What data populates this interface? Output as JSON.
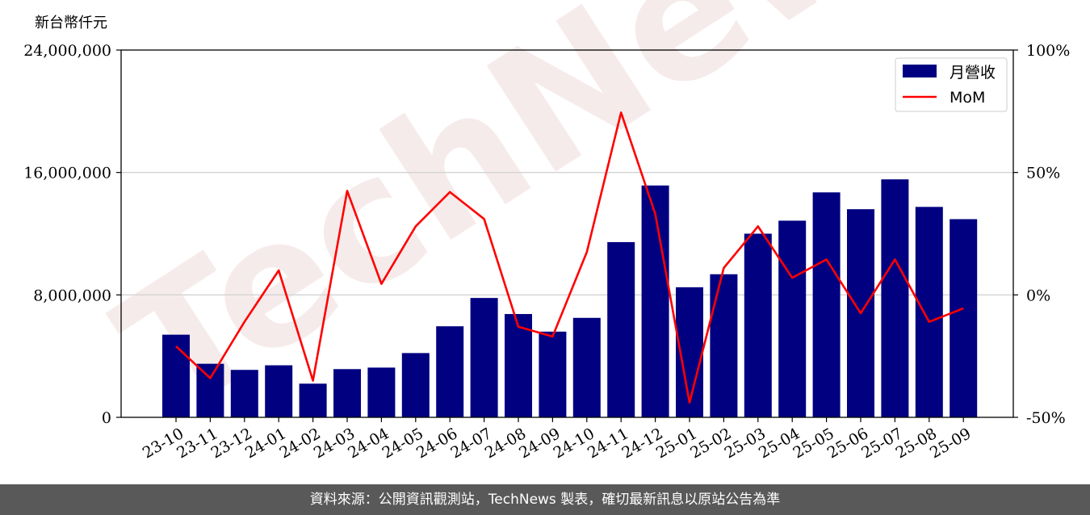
{
  "unit_label": "新台幣仟元",
  "footer": "資料來源：公開資訊觀測站，TechNews 製表，確切最新訊息以原站公告為準",
  "watermark": "TechNews",
  "colors": {
    "bar": "#000080",
    "line": "#ff0000",
    "grid": "#d3d3d3",
    "footer_bg": "#595959"
  },
  "chart_data": {
    "type": "bar",
    "categories": [
      "23-10",
      "23-11",
      "23-12",
      "24-01",
      "24-02",
      "24-03",
      "24-04",
      "24-05",
      "24-06",
      "24-07",
      "24-08",
      "24-09",
      "24-10",
      "24-11",
      "24-12",
      "25-01",
      "25-02",
      "25-03",
      "25-04",
      "25-05",
      "25-06",
      "25-07",
      "25-08",
      "25-09"
    ],
    "series": [
      {
        "name": "月營收",
        "type": "bar",
        "axis": "left",
        "values": [
          5400000,
          3500000,
          3100000,
          3400000,
          2200000,
          3150000,
          3250000,
          4200000,
          5950000,
          7800000,
          6750000,
          5600000,
          6500000,
          11450000,
          15150000,
          8500000,
          9350000,
          12000000,
          12850000,
          14700000,
          13600000,
          15550000,
          13750000,
          12950000
        ]
      },
      {
        "name": "MoM",
        "type": "line",
        "axis": "right",
        "values": [
          -21,
          -34,
          -11,
          10,
          -35,
          42.5,
          4.5,
          28,
          42,
          31,
          -13,
          -17,
          17.5,
          74.5,
          33,
          -44,
          11,
          28,
          7,
          14.5,
          -7.5,
          14.5,
          -11,
          -5.5
        ]
      }
    ],
    "y_left": {
      "ylim": [
        0,
        24000000
      ],
      "ticks": [
        "0",
        "8,000,000",
        "16,000,000",
        "24,000,000"
      ],
      "tick_values": [
        0,
        8000000,
        16000000,
        24000000
      ]
    },
    "y_right": {
      "ylim": [
        -50,
        100
      ],
      "ticks": [
        "-50%",
        "0%",
        "50%",
        "100%"
      ],
      "tick_values": [
        -50,
        0,
        50,
        100
      ]
    },
    "grid": "horizontal",
    "legend": {
      "position": "top-right",
      "entries": [
        "月營收",
        "MoM"
      ]
    }
  }
}
